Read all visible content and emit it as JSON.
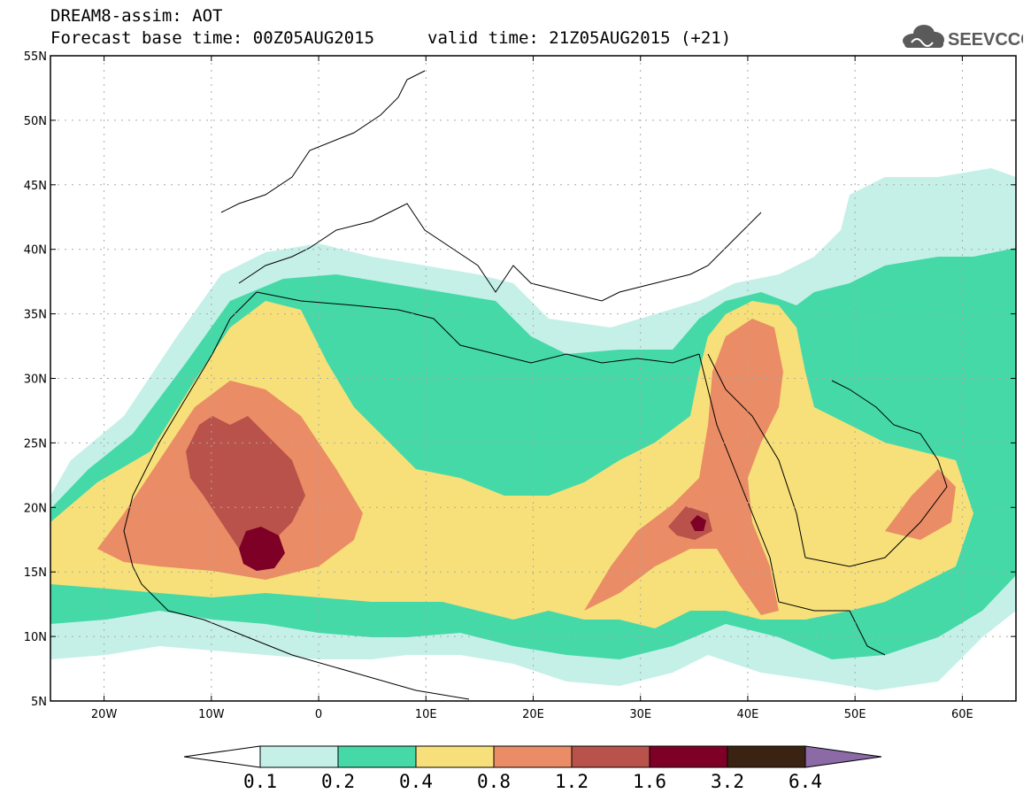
{
  "header": {
    "title_line1": "DREAM8-assim: AOT",
    "title_line2": "Forecast base time: 00Z05AUG2015",
    "valid_time": "valid time: 21Z05AUG2015 (+21)",
    "logo_text": "SEEVCCC"
  },
  "map": {
    "lon_range": [
      -25,
      65
    ],
    "lat_range": [
      5,
      55
    ],
    "lat_labels": [
      "55N",
      "50N",
      "45N",
      "40N",
      "35N",
      "30N",
      "25N",
      "20N",
      "15N",
      "10N",
      "5N"
    ],
    "lat_values": [
      55,
      50,
      45,
      40,
      35,
      30,
      25,
      20,
      15,
      10,
      5
    ],
    "lon_labels": [
      "20W",
      "10W",
      "0",
      "10E",
      "20E",
      "30E",
      "40E",
      "50E",
      "60E"
    ],
    "lon_values": [
      -20,
      -10,
      0,
      10,
      20,
      30,
      40,
      50,
      60
    ],
    "grid": true
  },
  "colorbar": {
    "levels": [
      "0.1",
      "0.2",
      "0.4",
      "0.8",
      "1.2",
      "1.6",
      "3.2",
      "6.4"
    ],
    "colors": [
      "#ffffff",
      "#c5f0e8",
      "#45d9a8",
      "#f7e07a",
      "#ea8c65",
      "#b8524a",
      "#7e0027",
      "#3b2314",
      "#8c6aa6"
    ]
  },
  "colors": {
    "c02": "#c5f0e8",
    "c04": "#45d9a8",
    "c08": "#f7e07a",
    "c12": "#ea8c65",
    "c16": "#b8524a",
    "c32": "#7e0027"
  }
}
